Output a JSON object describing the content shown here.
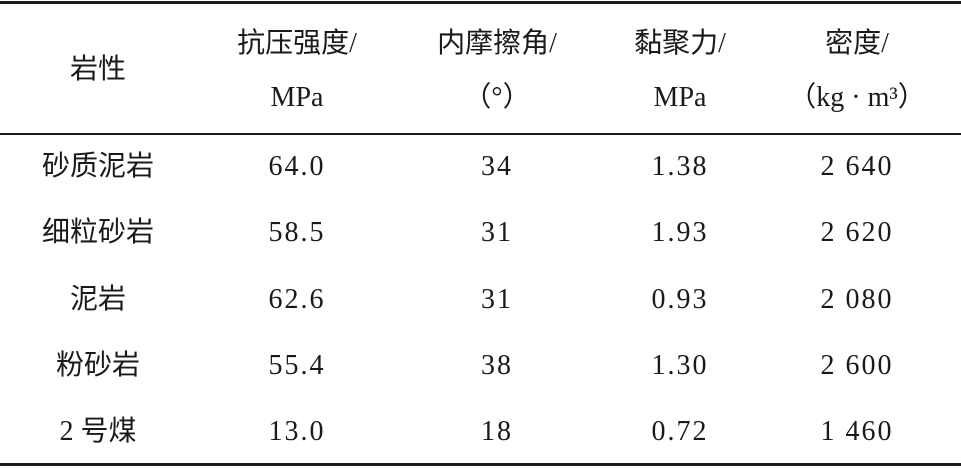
{
  "table": {
    "header": [
      [
        "岩性"
      ],
      [
        "抗压强度/",
        "MPa"
      ],
      [
        "内摩擦角/",
        "（°）"
      ],
      [
        "黏聚力/",
        "MPa"
      ],
      [
        "密度/",
        "（kg · m³）"
      ]
    ],
    "rows": [
      [
        "砂质泥岩",
        "64.0",
        "34",
        "1.38",
        "2 640"
      ],
      [
        "细粒砂岩",
        "58.5",
        "31",
        "1.93",
        "2 620"
      ],
      [
        "泥岩",
        "62.6",
        "31",
        "0.93",
        "2 080"
      ],
      [
        "粉砂岩",
        "55.4",
        "38",
        "1.30",
        "2 600"
      ],
      [
        "2 号煤",
        "13.0",
        "18",
        "0.72",
        "1 460"
      ]
    ]
  }
}
